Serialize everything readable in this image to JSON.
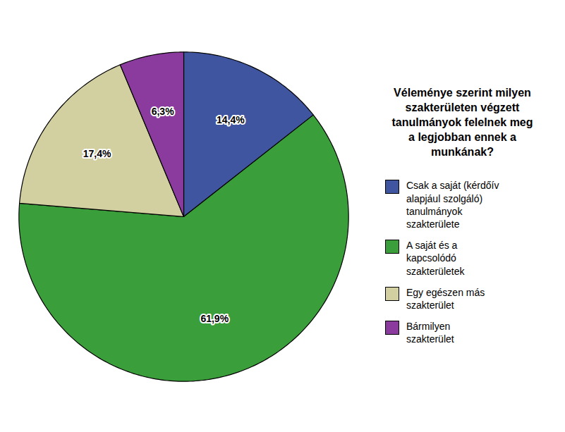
{
  "chart_data": {
    "type": "pie",
    "title": "Véleménye szerint milyen\nszakterületen végzett\ntanulmányok felelnek meg\na legjobban ennek a\nmunkának?",
    "categories": [
      "Csak a saját (kérdőív\nalapjául szolgáló)\ntanulmányok\nszakterülete",
      "A saját és a\nkapcsolódó\nszakterületek",
      "Egy egészen más\nszakterület",
      "Bármilyen\nszakterület"
    ],
    "values": [
      14.4,
      61.9,
      17.4,
      6.3
    ],
    "value_labels": [
      "14,4%",
      "61,9%",
      "17,4%",
      "6,3%"
    ],
    "colors": [
      "#4055a0",
      "#3a9e3a",
      "#d2cfa0",
      "#8b3a9e"
    ],
    "data_labels": true,
    "legend": "right"
  }
}
